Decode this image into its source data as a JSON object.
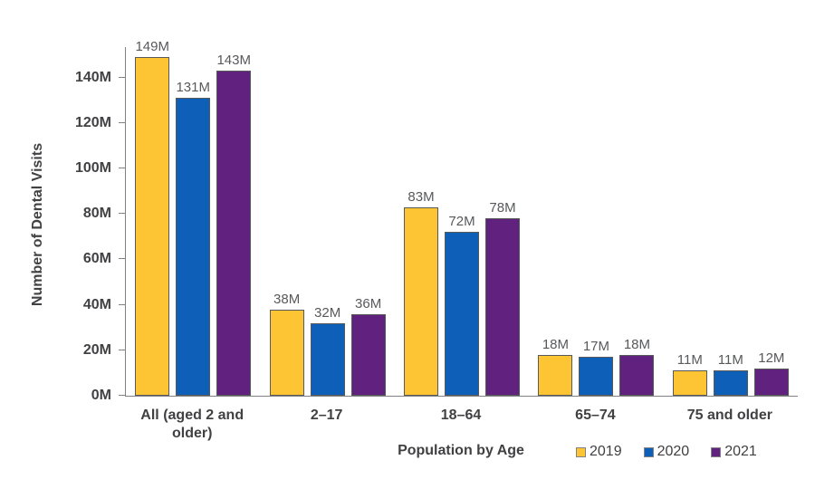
{
  "chart_data": {
    "type": "bar",
    "title": "",
    "xlabel": "Population by Age",
    "ylabel": "Number of Dental Visits",
    "unit": "M",
    "categories": [
      "All (aged 2 and older)",
      "2–17",
      "18–64",
      "65–74",
      "75 and older"
    ],
    "series": [
      {
        "name": "2019",
        "color": "#FDC433",
        "values": [
          149,
          38,
          83,
          18,
          11
        ]
      },
      {
        "name": "2020",
        "color": "#0D5FB8",
        "values": [
          131,
          32,
          72,
          17,
          11
        ]
      },
      {
        "name": "2021",
        "color": "#61217E",
        "values": [
          143,
          36,
          78,
          18,
          12
        ]
      }
    ],
    "data_labels": [
      [
        "149M",
        "131M",
        "143M"
      ],
      [
        "38M",
        "32M",
        "36M"
      ],
      [
        "83M",
        "72M",
        "78M"
      ],
      [
        "18M",
        "17M",
        "18M"
      ],
      [
        "11M",
        "11M",
        "12M"
      ]
    ],
    "yticks": [
      {
        "value": 0,
        "label": "0M"
      },
      {
        "value": 20,
        "label": "20M"
      },
      {
        "value": 40,
        "label": "40M"
      },
      {
        "value": 60,
        "label": "60M"
      },
      {
        "value": 80,
        "label": "80M"
      },
      {
        "value": 100,
        "label": "100M"
      },
      {
        "value": 120,
        "label": "120M"
      },
      {
        "value": 140,
        "label": "140M"
      }
    ],
    "ylim": [
      0,
      153
    ],
    "grid": false,
    "legend_position": "bottom-right",
    "colors": {
      "bar_border": "#58595B",
      "axis": "#808285",
      "tick_label": "#414042",
      "data_label": "#58595B",
      "axis_title": "#414042"
    }
  }
}
